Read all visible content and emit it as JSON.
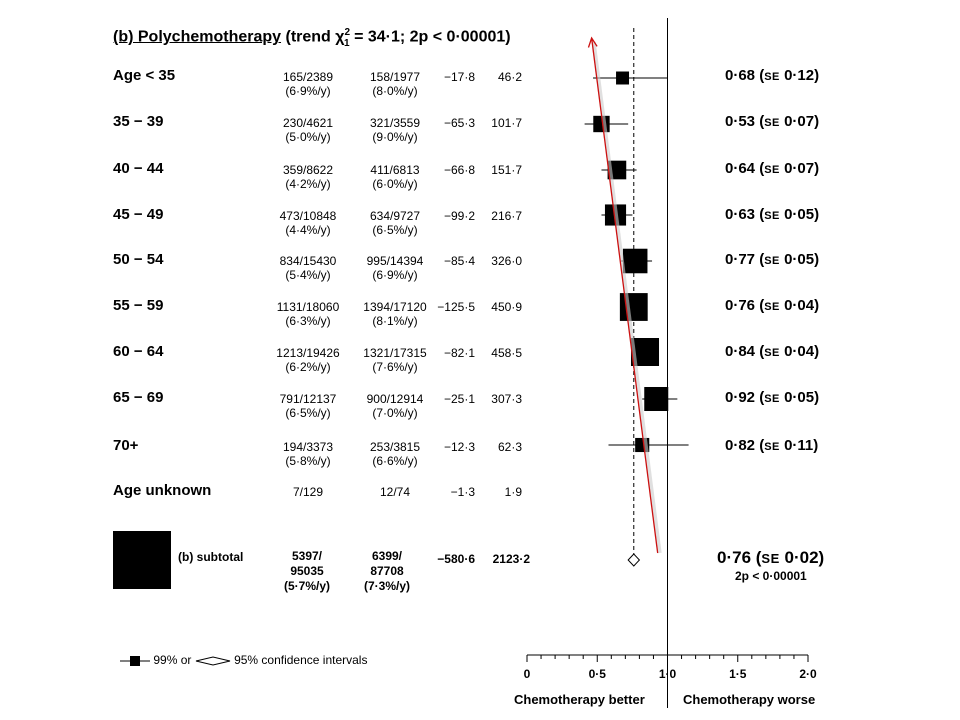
{
  "title": {
    "main": "(b) Polychemotherapy",
    "trend_open": "(trend",
    "chi": "χ",
    "chi_sup": "2",
    "chi_sub": "1",
    "trend_rest": "= 34·1; 2p < 0·00001)"
  },
  "rows": [
    {
      "label": "Age < 35",
      "c1": "165/2389",
      "c1p": "(6·9%/y)",
      "c2": "158/1977",
      "c2p": "(8·0%/y)",
      "oe": "−17·8",
      "var": "46·2",
      "ratio_value": "0·68",
      "se_label": "SE",
      "se_value": "0·12"
    },
    {
      "label": "35 − 39",
      "c1": "230/4621",
      "c1p": "(5·0%/y)",
      "c2": "321/3559",
      "c2p": "(9·0%/y)",
      "oe": "−65·3",
      "var": "101·7",
      "ratio_value": "0·53",
      "se_label": "SE",
      "se_value": "0·07"
    },
    {
      "label": "40 − 44",
      "c1": "359/8622",
      "c1p": "(4·2%/y)",
      "c2": "411/6813",
      "c2p": "(6·0%/y)",
      "oe": "−66·8",
      "var": "151·7",
      "ratio_value": "0·64",
      "se_label": "SE",
      "se_value": "0·07"
    },
    {
      "label": "45 − 49",
      "c1": "473/10848",
      "c1p": "(4·4%/y)",
      "c2": "634/9727",
      "c2p": "(6·5%/y)",
      "oe": "−99·2",
      "var": "216·7",
      "ratio_value": "0·63",
      "se_label": "SE",
      "se_value": "0·05"
    },
    {
      "label": "50 − 54",
      "c1": "834/15430",
      "c1p": "(5·4%/y)",
      "c2": "995/14394",
      "c2p": "(6·9%/y)",
      "oe": "−85·4",
      "var": "326·0",
      "ratio_value": "0·77",
      "se_label": "SE",
      "se_value": "0·05"
    },
    {
      "label": "55 − 59",
      "c1": "1131/18060",
      "c1p": "(6·3%/y)",
      "c2": "1394/17120",
      "c2p": "(8·1%/y)",
      "oe": "−125·5",
      "var": "450·9",
      "ratio_value": "0·76",
      "se_label": "SE",
      "se_value": "0·04"
    },
    {
      "label": "60 − 64",
      "c1": "1213/19426",
      "c1p": "(6·2%/y)",
      "c2": "1321/17315",
      "c2p": "(7·6%/y)",
      "oe": "−82·1",
      "var": "458·5",
      "ratio_value": "0·84",
      "se_label": "SE",
      "se_value": "0·04"
    },
    {
      "label": "65 − 69",
      "c1": "791/12137",
      "c1p": "(6·5%/y)",
      "c2": "900/12914",
      "c2p": "(7·0%/y)",
      "oe": "−25·1",
      "var": "307·3",
      "ratio_value": "0·92",
      "se_label": "SE",
      "se_value": "0·05"
    },
    {
      "label": "70+",
      "c1": "194/3373",
      "c1p": "(5·8%/y)",
      "c2": "253/3815",
      "c2p": "(6·6%/y)",
      "oe": "−12·3",
      "var": "62·3",
      "ratio_value": "0·82",
      "se_label": "SE",
      "se_value": "0·11"
    },
    {
      "label": "Age unknown",
      "c1": "7/129",
      "c1p": "",
      "c2": "12/74",
      "c2p": "",
      "oe": "−1·3",
      "var": "1·9",
      "ratio_value": "",
      "se_label": "",
      "se_value": ""
    }
  ],
  "subtotal": {
    "label": "(b) subtotal",
    "c1_a": "5397/",
    "c1_b": "95035",
    "c1_c": "(5·7%/y)",
    "c2_a": "6399/",
    "c2_b": "87708",
    "c2_c": "(7·3%/y)",
    "oe": "−580·6",
    "var": "2123·2",
    "ratio_value": "0·76",
    "se_label": "SE",
    "se_value": "0·02",
    "p": "2p < 0·00001"
  },
  "legend": {
    "text1": "99% or",
    "text2": "95% confidence intervals"
  },
  "footer": {
    "left": "Chemotherapy better",
    "right": "Chemotherapy worse"
  },
  "colors": {
    "trend_arrow": "#cc1111",
    "marker": "#000000"
  },
  "chart_data": {
    "type": "scatter",
    "subtype": "forest-plot",
    "xlim": [
      0,
      2
    ],
    "x_ticks": [
      "0",
      "0·5",
      "1·0",
      "1·5",
      "2·0"
    ],
    "x_tick_values": [
      0,
      0.5,
      1.0,
      1.5,
      2.0
    ],
    "reference_line": 1.0,
    "overall_dashed_line": 0.76,
    "categories": [
      "Age < 35",
      "35 − 39",
      "40 − 44",
      "45 − 49",
      "50 − 54",
      "55 − 59",
      "60 − 64",
      "65 − 69",
      "70+"
    ],
    "ratios": [
      0.68,
      0.53,
      0.64,
      0.63,
      0.77,
      0.76,
      0.84,
      0.92,
      0.82
    ],
    "ci_99_low": [
      0.47,
      0.41,
      0.53,
      0.53,
      0.67,
      0.68,
      0.76,
      0.82,
      0.58
    ],
    "ci_99_high": [
      1.0,
      0.72,
      0.78,
      0.75,
      0.89,
      0.85,
      0.93,
      1.07,
      1.15
    ],
    "marker_weight": [
      46.2,
      101.7,
      151.7,
      216.7,
      326.0,
      450.9,
      458.5,
      307.3,
      62.3
    ],
    "subtotal": {
      "ratio": 0.76,
      "ci_95_low": 0.72,
      "ci_95_high": 0.8
    },
    "trend_line": {
      "from": [
        0.53,
        "35 − 39"
      ],
      "to": [
        0.92,
        "subtotal"
      ]
    }
  }
}
